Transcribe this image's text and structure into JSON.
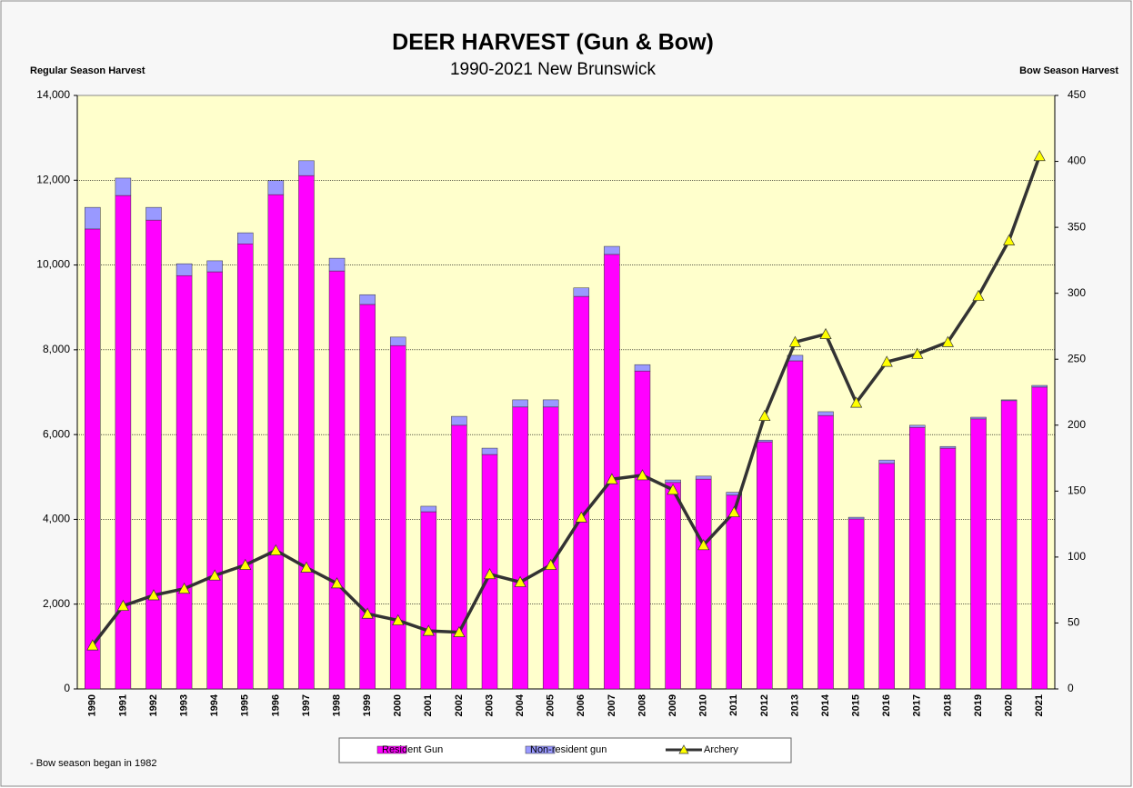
{
  "chart_data": {
    "type": "bar_line",
    "title": "DEER HARVEST (Gun & Bow)",
    "subtitle": "1990-2021 New Brunswick",
    "y_label": "Regular Season Harvest",
    "y2_label": "Bow Season Harvest",
    "annotation": "- Bow season began in 1982",
    "categories": [
      "1990",
      "1991",
      "1992",
      "1993",
      "1994",
      "1995",
      "1996",
      "1997",
      "1998",
      "1999",
      "2000",
      "2001",
      "2002",
      "2003",
      "2004",
      "2005",
      "2006",
      "2007",
      "2008",
      "2009",
      "2010",
      "2011",
      "2012",
      "2013",
      "2014",
      "2015",
      "2016",
      "2017",
      "2018",
      "2019",
      "2020",
      "2021"
    ],
    "series": [
      {
        "name": "Resident Gun",
        "type": "bar",
        "color": "#ff00ff",
        "values": [
          10850,
          11640,
          11060,
          9750,
          9840,
          10500,
          11660,
          12110,
          9860,
          9070,
          8100,
          4180,
          6220,
          5530,
          6650,
          6650,
          9260,
          10250,
          7500,
          4870,
          4950,
          4570,
          5830,
          7740,
          6450,
          4010,
          5320,
          6170,
          5680,
          6370,
          6800,
          7120
        ]
      },
      {
        "name": "Non-resident gun",
        "type": "bar",
        "color": "#9999ff",
        "values": [
          510,
          410,
          300,
          280,
          260,
          260,
          330,
          350,
          300,
          230,
          200,
          130,
          210,
          150,
          170,
          170,
          200,
          190,
          150,
          60,
          70,
          70,
          40,
          130,
          90,
          40,
          80,
          50,
          40,
          40,
          20,
          40
        ]
      },
      {
        "name": "Archery",
        "type": "line",
        "axis": "y2",
        "color": "#333333",
        "marker_color": "#ffff00",
        "values": [
          33,
          63,
          71,
          76,
          86,
          94,
          105,
          92,
          80,
          57,
          52,
          44,
          43,
          87,
          81,
          94,
          130,
          159,
          162,
          151,
          109,
          134,
          207,
          263,
          269,
          217,
          248,
          254,
          263,
          298,
          340,
          404
        ]
      }
    ],
    "ylim": [
      0,
      14000
    ],
    "yticks": [
      0,
      {
        "value": 2000,
        "label": "2,000"
      },
      {
        "value": 4000,
        "label": "4,000"
      },
      {
        "value": 6000,
        "label": "6,000"
      },
      {
        "value": 8000,
        "label": "8,000"
      },
      {
        "value": 10000,
        "label": "10,000"
      },
      {
        "value": 12000,
        "label": "12,000"
      },
      {
        "value": 14000,
        "label": "14,000"
      }
    ],
    "y2lim": [
      0,
      450
    ],
    "y2ticks": [
      0,
      50,
      100,
      150,
      200,
      250,
      300,
      350,
      400,
      450
    ],
    "grid": true,
    "legend": "bottom"
  }
}
